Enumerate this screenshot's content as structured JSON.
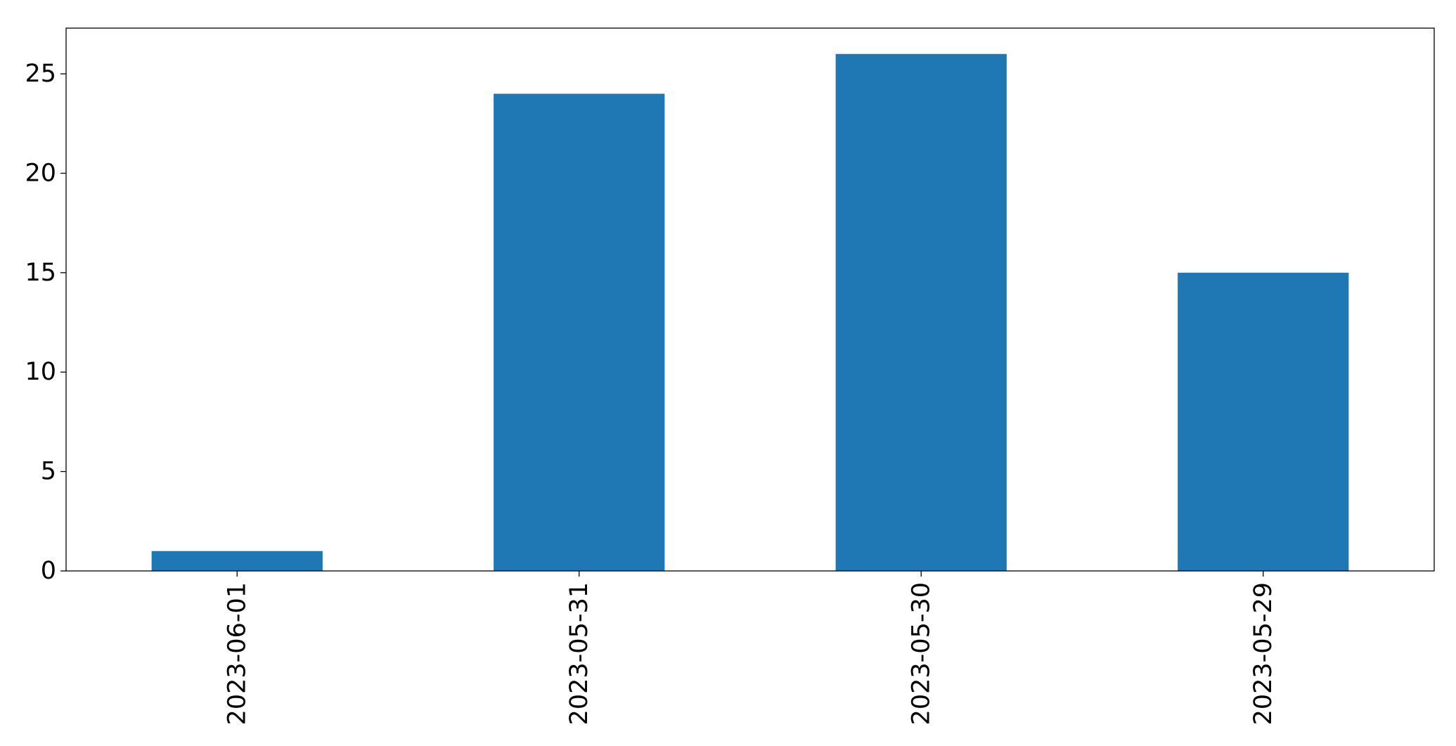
{
  "chart_data": {
    "type": "bar",
    "categories": [
      "2023-06-01",
      "2023-05-31",
      "2023-05-30",
      "2023-05-29"
    ],
    "values": [
      1,
      24,
      26,
      15
    ],
    "title": "",
    "xlabel": "",
    "ylabel": "",
    "ylim": [
      0,
      27.3
    ],
    "yticks": [
      0,
      5,
      10,
      15,
      20,
      25
    ],
    "ytick_labels": [
      "0",
      "5",
      "10",
      "15",
      "20",
      "25"
    ],
    "bar_color": "#1f77b4",
    "grid": false,
    "legend": "none",
    "x_tick_rotation": "vertical"
  }
}
